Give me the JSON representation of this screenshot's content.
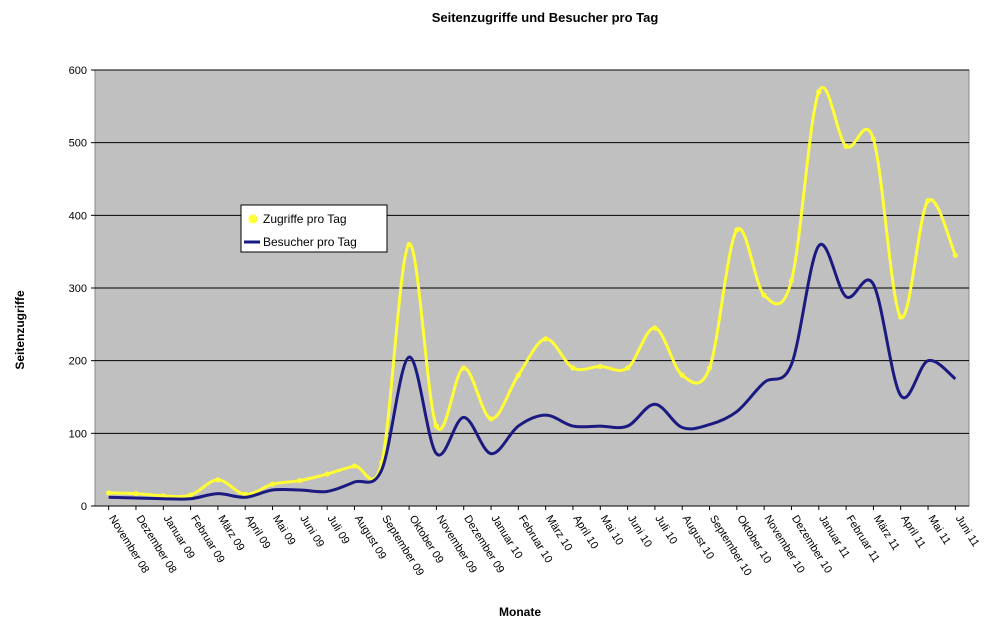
{
  "chart_data": {
    "type": "line",
    "title": "Seitenzugriffe und Besucher pro Tag",
    "xlabel": "Monate",
    "ylabel": "Seitenzugriffe",
    "ylim": [
      0,
      600
    ],
    "yticks": [
      0,
      100,
      200,
      300,
      400,
      500,
      600
    ],
    "grid": true,
    "legend_position": "left-center",
    "plot_background": "#c0c0c0",
    "categories": [
      "November 08",
      "Dezember 08",
      "Januar 09",
      "Februar 09",
      "März 09",
      "April 09",
      "Mai 09",
      "Juni 09",
      "Juli 09",
      "August 09",
      "September 09",
      "Oktober 09",
      "November 09",
      "Dezember 09",
      "Januar 10",
      "Februar 10",
      "März 10",
      "April 10",
      "Mai 10",
      "Juni 10",
      "Juli 10",
      "August 10",
      "September 10",
      "Oktober 10",
      "November 10",
      "Dezember 10",
      "Januar 11",
      "Februar 11",
      "März 11",
      "April 11",
      "Mai 11",
      "Juni 11"
    ],
    "series": [
      {
        "name": "Zugriffe pro Tag",
        "color": "#ffff33",
        "values": [
          18,
          17,
          14,
          15,
          36,
          16,
          30,
          35,
          44,
          55,
          60,
          360,
          110,
          190,
          120,
          180,
          230,
          190,
          192,
          190,
          245,
          180,
          190,
          380,
          290,
          310,
          570,
          495,
          505,
          260,
          420,
          345
        ]
      },
      {
        "name": "Besucher pro Tag",
        "color": "#1a1a80",
        "values": [
          12,
          11,
          10,
          10,
          17,
          12,
          22,
          22,
          20,
          33,
          50,
          205,
          72,
          122,
          72,
          110,
          125,
          110,
          110,
          110,
          140,
          108,
          112,
          130,
          170,
          195,
          358,
          288,
          305,
          152,
          200,
          175
        ]
      }
    ]
  }
}
